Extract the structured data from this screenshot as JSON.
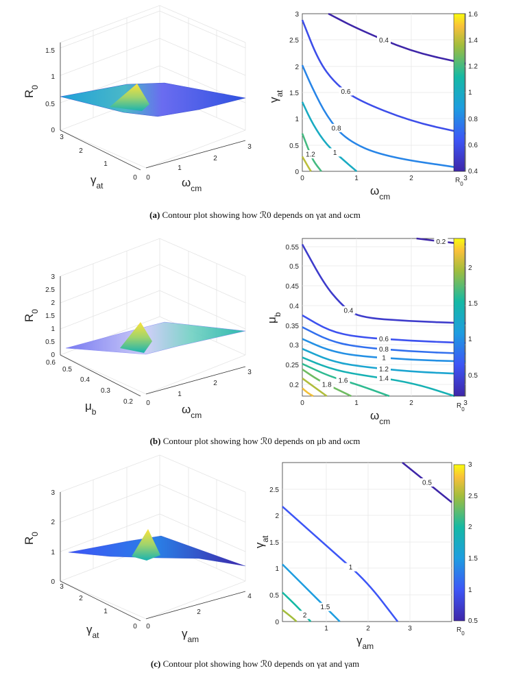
{
  "figure": {
    "captions": [
      {
        "tag": "(a)",
        "text": "Contour plot showing how ℛ0 depends on γat and ωcm"
      },
      {
        "tag": "(b)",
        "text": "Contour plot showing how ℛ0 depends on μb and ωcm"
      },
      {
        "tag": "(c)",
        "text": "Contour plot showing how ℛ0 depends on γat and γam"
      }
    ]
  },
  "chart_data": [
    {
      "panel": "a",
      "type": "surface3d",
      "zlabel": "R0",
      "ylabel": "γat",
      "xlabel": "ωcm",
      "zticks": [
        "0",
        "0.5",
        "1",
        "1.5"
      ],
      "yticks": [
        "0",
        "1",
        "2",
        "3"
      ],
      "xticks": [
        "0",
        "1",
        "2",
        "3"
      ],
      "zlim": [
        0,
        1.7
      ],
      "ylim": [
        0,
        3
      ],
      "xlim": [
        0,
        3
      ]
    },
    {
      "panel": "a",
      "type": "contour",
      "xlabel": "ωcm",
      "ylabel": "γat",
      "colorbar_label": "R0",
      "xlim": [
        0,
        3
      ],
      "ylim": [
        0,
        3
      ],
      "xticks": [
        "0",
        "1",
        "2",
        "3"
      ],
      "yticks": [
        "0",
        "0.5",
        "1",
        "1.5",
        "2",
        "2.5",
        "3"
      ],
      "colorbar_range": [
        0.4,
        1.6
      ],
      "colorbar_ticks": [
        "0.4",
        "0.6",
        "0.8",
        "1",
        "1.2",
        "1.4",
        "1.6"
      ],
      "levels": [
        {
          "label": "0.4",
          "value": 0.4,
          "points": [
            [
              0.48,
              3.0
            ],
            [
              1.0,
              2.72
            ],
            [
              2.0,
              2.28
            ],
            [
              3.0,
              2.05
            ]
          ]
        },
        {
          "label": "0.6",
          "value": 0.6,
          "points": [
            [
              0.0,
              2.88
            ],
            [
              0.3,
              2.1
            ],
            [
              0.6,
              1.68
            ],
            [
              1.0,
              1.36
            ],
            [
              2.0,
              0.95
            ],
            [
              3.0,
              0.72
            ]
          ]
        },
        {
          "label": "0.8",
          "value": 0.8,
          "points": [
            [
              0.0,
              2.02
            ],
            [
              0.2,
              1.55
            ],
            [
              0.45,
              1.05
            ],
            [
              0.8,
              0.6
            ],
            [
              1.5,
              0.28
            ],
            [
              3.0,
              0.05
            ]
          ]
        },
        {
          "label": "1",
          "value": 1.0,
          "points": [
            [
              0.0,
              1.32
            ],
            [
              0.2,
              0.88
            ],
            [
              0.45,
              0.5
            ],
            [
              0.75,
              0.22
            ],
            [
              1.0,
              0.0
            ]
          ]
        },
        {
          "label": "1.2",
          "value": 1.2,
          "points": [
            [
              0.0,
              0.72
            ],
            [
              0.1,
              0.45
            ],
            [
              0.2,
              0.2
            ],
            [
              0.35,
              0.0
            ]
          ]
        },
        {
          "label": "",
          "value": 1.4,
          "points": [
            [
              0.0,
              0.28
            ],
            [
              0.1,
              0.1
            ],
            [
              0.16,
              0.0
            ]
          ]
        }
      ]
    },
    {
      "panel": "b",
      "type": "surface3d",
      "zlabel": "R0",
      "ylabel": "μb",
      "xlabel": "ωcm",
      "zticks": [
        "0",
        "0.5",
        "1",
        "1.5",
        "2",
        "2.5",
        "3"
      ],
      "yticks": [
        "0.2",
        "0.3",
        "0.4",
        "0.5",
        "0.6"
      ],
      "xticks": [
        "0",
        "1",
        "2",
        "3"
      ],
      "zlim": [
        0,
        3
      ],
      "ylim": [
        0.17,
        0.6
      ],
      "xlim": [
        0,
        3
      ]
    },
    {
      "panel": "b",
      "type": "contour",
      "xlabel": "ωcm",
      "ylabel": "μb",
      "colorbar_label": "R0",
      "xlim": [
        0,
        3
      ],
      "ylim": [
        0.17,
        0.57
      ],
      "xticks": [
        "0",
        "1",
        "2",
        "3"
      ],
      "yticks": [
        "0.2",
        "0.25",
        "0.3",
        "0.35",
        "0.4",
        "0.45",
        "0.5",
        "0.55"
      ],
      "colorbar_range": [
        0.2,
        2.4
      ],
      "colorbar_ticks": [
        "0.5",
        "1",
        "1.5",
        "2"
      ],
      "levels": [
        {
          "label": "0.2",
          "value": 0.2,
          "points": [
            [
              2.1,
              0.57
            ],
            [
              3.0,
              0.555
            ]
          ]
        },
        {
          "label": "0.4",
          "value": 0.4,
          "points": [
            [
              0.0,
              0.555
            ],
            [
              0.4,
              0.455
            ],
            [
              0.7,
              0.405
            ],
            [
              1.0,
              0.37
            ],
            [
              2.0,
              0.36
            ],
            [
              3.0,
              0.355
            ]
          ]
        },
        {
          "label": "0.6",
          "value": 0.6,
          "points": [
            [
              0.0,
              0.375
            ],
            [
              0.5,
              0.335
            ],
            [
              1.0,
              0.32
            ],
            [
              2.0,
              0.31
            ],
            [
              3.0,
              0.305
            ]
          ]
        },
        {
          "label": "0.8",
          "value": 0.8,
          "points": [
            [
              0.0,
              0.345
            ],
            [
              0.5,
              0.31
            ],
            [
              1.0,
              0.295
            ],
            [
              2.0,
              0.283
            ],
            [
              3.0,
              0.278
            ]
          ]
        },
        {
          "label": "1",
          "value": 1.0,
          "points": [
            [
              0.0,
              0.315
            ],
            [
              0.5,
              0.285
            ],
            [
              1.0,
              0.272
            ],
            [
              2.0,
              0.262
            ],
            [
              3.0,
              0.258
            ]
          ]
        },
        {
          "label": "1.2",
          "value": 1.2,
          "points": [
            [
              0.0,
              0.29
            ],
            [
              0.5,
              0.26
            ],
            [
              1.0,
              0.246
            ],
            [
              2.0,
              0.232
            ],
            [
              3.0,
              0.226
            ]
          ]
        },
        {
          "label": "1.4",
          "value": 1.4,
          "points": [
            [
              0.0,
              0.268
            ],
            [
              0.5,
              0.24
            ],
            [
              1.0,
              0.225
            ],
            [
              2.0,
              0.205
            ],
            [
              2.8,
              0.17
            ]
          ]
        },
        {
          "label": "1.6",
          "value": 1.6,
          "points": [
            [
              0.0,
              0.252
            ],
            [
              0.5,
              0.22
            ],
            [
              1.0,
              0.2
            ],
            [
              1.6,
              0.17
            ]
          ]
        },
        {
          "label": "1.8",
          "value": 1.8,
          "points": [
            [
              0.0,
              0.238
            ],
            [
              0.3,
              0.21
            ],
            [
              0.6,
              0.19
            ],
            [
              0.9,
              0.17
            ]
          ]
        },
        {
          "label": "",
          "value": 2.0,
          "points": [
            [
              0.0,
              0.215
            ],
            [
              0.25,
              0.19
            ],
            [
              0.45,
              0.17
            ]
          ]
        },
        {
          "label": "",
          "value": 2.2,
          "points": [
            [
              0.0,
              0.19
            ],
            [
              0.1,
              0.178
            ],
            [
              0.2,
              0.17
            ]
          ]
        }
      ]
    },
    {
      "panel": "c",
      "type": "surface3d",
      "zlabel": "R0",
      "ylabel": "γat",
      "xlabel": "γam",
      "zticks": [
        "0",
        "1",
        "2",
        "3"
      ],
      "yticks": [
        "0",
        "1",
        "2",
        "3"
      ],
      "xticks": [
        "0",
        "2",
        "4"
      ],
      "zlim": [
        0,
        3
      ],
      "ylim": [
        0,
        3
      ],
      "xlim": [
        0,
        4
      ]
    },
    {
      "panel": "c",
      "type": "contour",
      "xlabel": "γam",
      "ylabel": "γat",
      "colorbar_label": "R0",
      "xlim": [
        0.4,
        4
      ],
      "ylim": [
        0,
        3
      ],
      "xticks": [
        "1",
        "2",
        "3"
      ],
      "yticks": [
        "0",
        "0.5",
        "1",
        "1.5",
        "2",
        "2.5"
      ],
      "colorbar_range": [
        0.5,
        3
      ],
      "colorbar_ticks": [
        "0.5",
        "1",
        "1.5",
        "2",
        "2.5",
        "3"
      ],
      "levels": [
        {
          "label": "0.5",
          "value": 0.5,
          "points": [
            [
              2.95,
              3.0
            ],
            [
              4.0,
              2.25
            ]
          ]
        },
        {
          "label": "1",
          "value": 1.0,
          "points": [
            [
              0.4,
              2.17
            ],
            [
              1.5,
              1.3
            ],
            [
              2.2,
              0.75
            ],
            [
              2.85,
              0.0
            ]
          ]
        },
        {
          "label": "1.5",
          "value": 1.5,
          "points": [
            [
              0.4,
              1.08
            ],
            [
              1.0,
              0.55
            ],
            [
              1.62,
              0.0
            ]
          ]
        },
        {
          "label": "2",
          "value": 2.0,
          "points": [
            [
              0.4,
              0.55
            ],
            [
              0.75,
              0.25
            ],
            [
              1.0,
              0.0
            ]
          ]
        },
        {
          "label": "",
          "value": 2.5,
          "points": [
            [
              0.4,
              0.22
            ],
            [
              0.6,
              0.08
            ],
            [
              0.7,
              0.0
            ]
          ]
        }
      ]
    }
  ]
}
